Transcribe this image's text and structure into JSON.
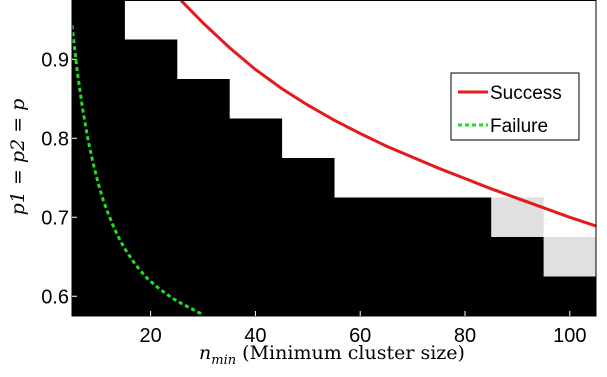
{
  "chart_data": {
    "type": "heatmap",
    "title": "",
    "xlabel": {
      "symbol": "n",
      "subscript": "min",
      "text": " (Minimum cluster size)"
    },
    "ylabel": "p1 = p2 = p",
    "xlim": [
      5,
      105
    ],
    "ylim": [
      0.575,
      0.975
    ],
    "x_ticks": [
      20,
      40,
      60,
      80,
      100
    ],
    "y_ticks": [
      0.6,
      0.7,
      0.8,
      0.9
    ],
    "grid": false,
    "legend_position": "right",
    "cell_width": 10,
    "cell_height": 0.05,
    "colors": {
      "black": "#000000",
      "gray": "#e0e0e0",
      "white": "#ffffff",
      "success": "#e41a1c",
      "failure": "#22dd22"
    },
    "cells": [
      {
        "x": 10,
        "black_up_to": 0.95
      },
      {
        "x": 20,
        "black_up_to": 0.9
      },
      {
        "x": 30,
        "black_up_to": 0.85
      },
      {
        "x": 40,
        "black_up_to": 0.8
      },
      {
        "x": 50,
        "black_up_to": 0.75
      },
      {
        "x": 60,
        "black_up_to": 0.7
      },
      {
        "x": 70,
        "black_up_to": 0.7
      },
      {
        "x": 80,
        "black_up_to": 0.7
      },
      {
        "x": 90,
        "black_up_to": 0.65,
        "gray": [
          0.7
        ]
      },
      {
        "x": 100,
        "black_up_to": 0.65,
        "gray": [
          0.65
        ]
      }
    ],
    "series": [
      {
        "name": "Success",
        "style": "solid",
        "x": [
          25,
          30,
          35,
          40,
          45,
          50,
          55,
          60,
          65,
          70,
          75,
          80,
          85,
          90,
          95,
          100,
          105
        ],
        "y": [
          0.98,
          0.946,
          0.915,
          0.887,
          0.863,
          0.842,
          0.823,
          0.806,
          0.79,
          0.776,
          0.762,
          0.749,
          0.736,
          0.724,
          0.712,
          0.7,
          0.689
        ]
      },
      {
        "name": "Failure",
        "style": "dotted",
        "x": [
          5,
          6,
          7,
          8,
          9,
          10,
          11,
          12,
          13,
          14,
          15,
          17,
          19,
          21,
          23,
          25,
          27,
          29,
          30
        ],
        "y": [
          0.943,
          0.885,
          0.838,
          0.8,
          0.769,
          0.743,
          0.721,
          0.703,
          0.687,
          0.673,
          0.661,
          0.641,
          0.625,
          0.613,
          0.603,
          0.594,
          0.587,
          0.58,
          0.577
        ]
      }
    ]
  }
}
